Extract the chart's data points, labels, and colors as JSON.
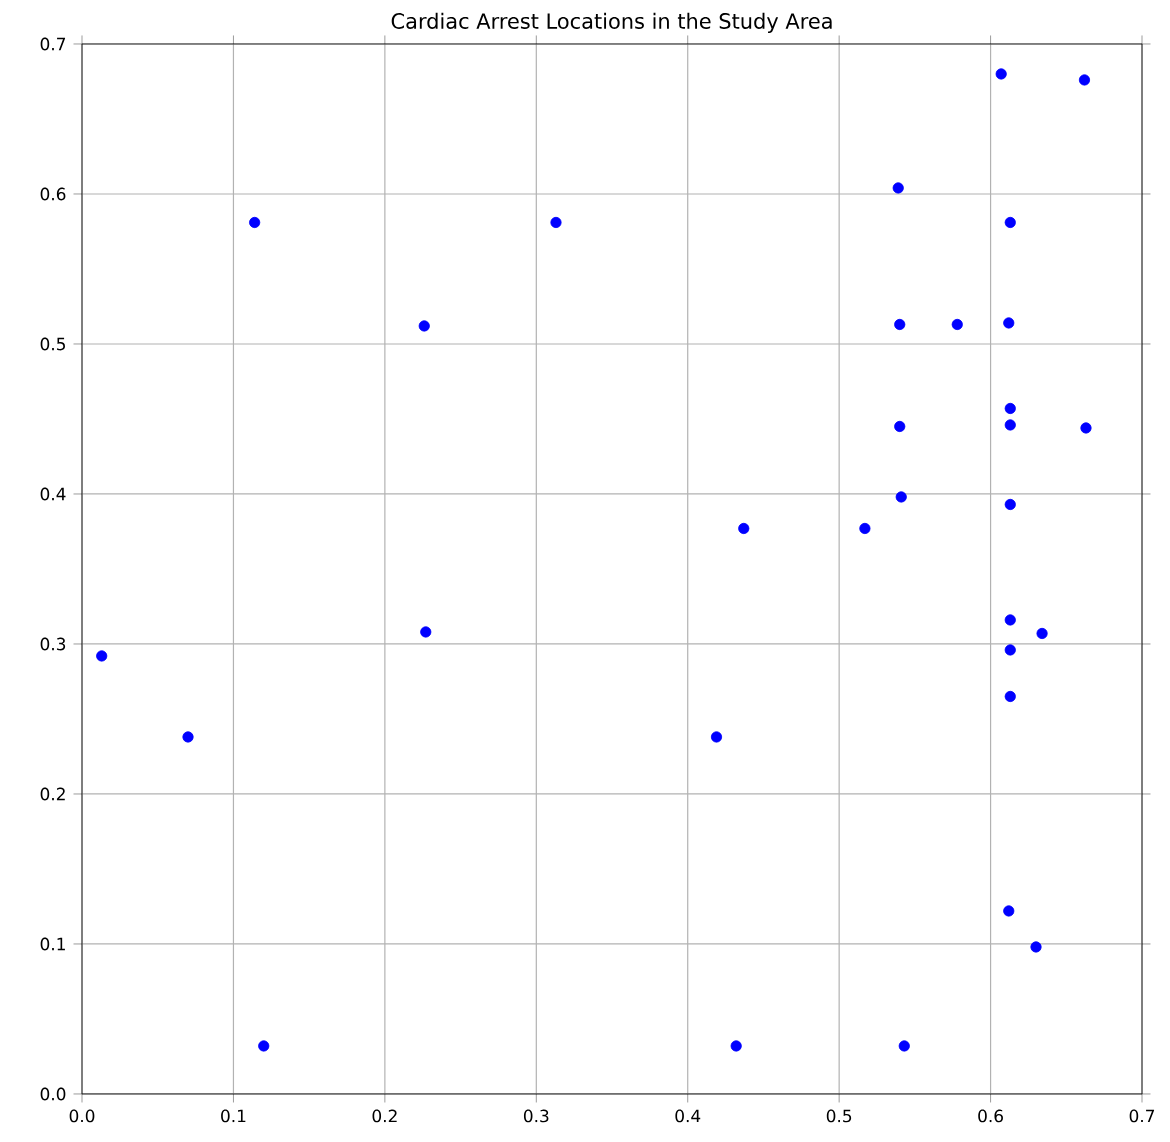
{
  "chart_data": {
    "type": "scatter",
    "title": "Cardiac Arrest Locations in the Study Area",
    "x": [
      0.607,
      0.662,
      0.539,
      0.114,
      0.313,
      0.613,
      0.226,
      0.54,
      0.578,
      0.612,
      0.613,
      0.613,
      0.54,
      0.663,
      0.541,
      0.613,
      0.437,
      0.517,
      0.013,
      0.07,
      0.227,
      0.419,
      0.613,
      0.613,
      0.634,
      0.613,
      0.612,
      0.63,
      0.12,
      0.432,
      0.543
    ],
    "series": [
      {
        "color": "#0000ff",
        "values": [
          0.68,
          0.676,
          0.604,
          0.581,
          0.581,
          0.581,
          0.512,
          0.513,
          0.513,
          0.514,
          0.457,
          0.446,
          0.445,
          0.444,
          0.398,
          0.393,
          0.377,
          0.377,
          0.292,
          0.238,
          0.308,
          0.238,
          0.316,
          0.296,
          0.307,
          0.265,
          0.122,
          0.098,
          0.032,
          0.032,
          0.032
        ]
      }
    ],
    "xlim": [
      0,
      0.7
    ],
    "ylim": [
      0,
      0.7
    ],
    "xticks": [
      {
        "value": 0,
        "label": "0.0"
      },
      0.1,
      0.2,
      0.3,
      0.4,
      0.5,
      0.6,
      0.7
    ],
    "yticks": [
      {
        "value": 0,
        "label": "0.0"
      },
      0.1,
      0.2,
      0.3,
      0.4,
      0.5,
      0.6,
      0.7
    ],
    "grid": true,
    "marker": "circle"
  }
}
